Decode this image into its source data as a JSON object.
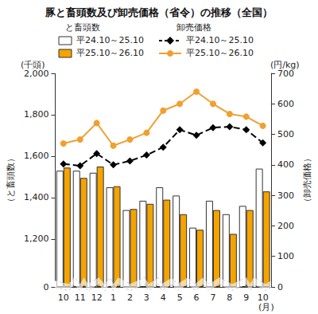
{
  "chart_data": {
    "type": "bar",
    "title": "豚と畜頭数及び卸売価格（省令）の推移（全国）",
    "categories": [
      "10",
      "11",
      "12",
      "1",
      "2",
      "3",
      "4",
      "5",
      "6",
      "7",
      "8",
      "9",
      "10"
    ],
    "x_label": "(月)",
    "y_label": "（と畜頭数）",
    "y_unit": "(千頭)",
    "y2_label": "（卸売価格）",
    "y2_unit": "(円/kg)",
    "bar_legend_title": "と畜頭数",
    "line_legend_title": "卸売価格",
    "ylim": [
      0,
      2000
    ],
    "yticks": [
      0,
      {
        "value": 1200,
        "label": "1,200"
      },
      {
        "value": 1400,
        "label": "1,400"
      },
      {
        "value": 1600,
        "label": "1,600"
      },
      {
        "value": 1800,
        "label": "1,800"
      },
      {
        "value": 2000,
        "label": "2,000"
      }
    ],
    "y2lim": [
      0,
      700
    ],
    "y2ticks": [
      0,
      100,
      200,
      300,
      400,
      500,
      600,
      700
    ],
    "grid": false,
    "series": [
      {
        "name": "平24.10～25.10",
        "type": "bar",
        "color": "#ffffff",
        "values": [
          1530,
          1530,
          1520,
          1450,
          1340,
          1385,
          1450,
          1410,
          1255,
          1385,
          1320,
          1360,
          1540
        ]
      },
      {
        "name": "平25.10～26.10",
        "type": "bar",
        "color": "#f5a300",
        "values": [
          1545,
          1495,
          1550,
          1455,
          1345,
          1370,
          1390,
          1320,
          1245,
          1340,
          1225,
          1340,
          1430
        ]
      },
      {
        "name": "平24.10～25.10",
        "type": "line",
        "axis": "y2",
        "color": "#000000",
        "marker": "diamond",
        "line_style": "dashed",
        "values": [
          403,
          397,
          437,
          400,
          413,
          432,
          458,
          515,
          497,
          522,
          525,
          515,
          472
        ]
      },
      {
        "name": "平25.10～26.10",
        "type": "line",
        "axis": "y2",
        "color": "#f0a030",
        "marker": "circle",
        "line_style": "solid",
        "values": [
          470,
          483,
          537,
          463,
          483,
          505,
          578,
          600,
          640,
          600,
          567,
          558,
          528
        ]
      }
    ]
  }
}
